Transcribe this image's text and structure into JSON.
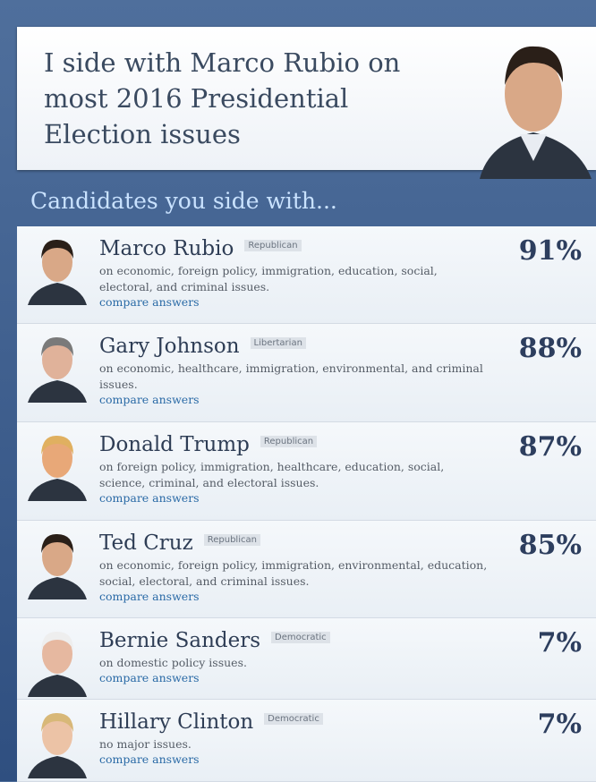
{
  "header": {
    "title": "I side with Marco Rubio on most 2016 Presidential Election issues"
  },
  "section_title": "Candidates you side with...",
  "candidates": [
    {
      "name": "Marco Rubio",
      "party": "Republican",
      "issues": "on economic, foreign policy, immigration, education, social, electoral, and criminal issues.",
      "link": "compare answers",
      "match": "91%"
    },
    {
      "name": "Gary Johnson",
      "party": "Libertarian",
      "issues": "on economic, healthcare, immigration, environmental, and criminal issues.",
      "link": "compare answers",
      "match": "88%"
    },
    {
      "name": "Donald Trump",
      "party": "Republican",
      "issues": "on foreign policy, immigration, healthcare, education, social, science, criminal, and electoral issues.",
      "link": "compare answers",
      "match": "87%"
    },
    {
      "name": "Ted Cruz",
      "party": "Republican",
      "issues": "on economic, foreign policy, immigration, environmental, education, social, electoral, and criminal issues.",
      "link": "compare answers",
      "match": "85%"
    },
    {
      "name": "Bernie Sanders",
      "party": "Democratic",
      "issues": "on domestic policy issues.",
      "link": "compare answers",
      "match": "7%"
    },
    {
      "name": "Hillary Clinton",
      "party": "Democratic",
      "issues": "no major issues.",
      "link": "compare answers",
      "match": "7%"
    }
  ]
}
